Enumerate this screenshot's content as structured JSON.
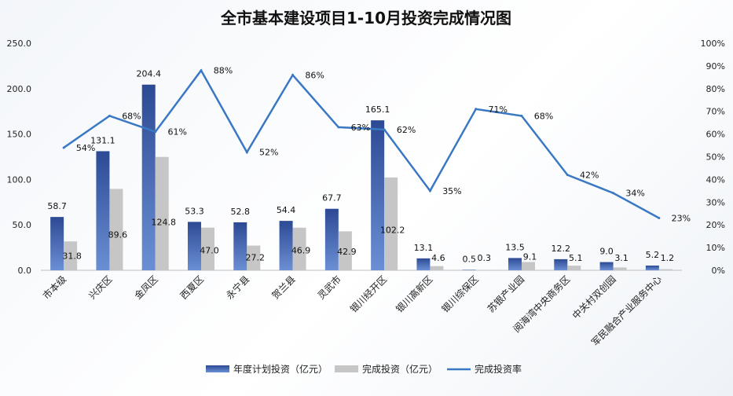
{
  "chart_data": {
    "type": "bar",
    "title": "全市基本建设项目1-10月投资完成情况图",
    "categories": [
      "市本级",
      "兴庆区",
      "金凤区",
      "西夏区",
      "永宁县",
      "贺兰县",
      "灵武市",
      "银川经开区",
      "银川高新区",
      "银川综保区",
      "苏银产业园",
      "阅海湾中央商务区",
      "中关村双创园",
      "军民融合产业服务中心"
    ],
    "series": [
      {
        "name": "年度计划投资（亿元）",
        "type": "bar",
        "axis": "left",
        "color": "#3d5fa8",
        "values": [
          58.7,
          131.1,
          204.4,
          53.3,
          52.8,
          54.4,
          67.7,
          165.1,
          13.1,
          0.5,
          13.5,
          12.2,
          9.0,
          5.2
        ],
        "labels": [
          "58.7",
          "131.1",
          "204.4",
          "53.3",
          "52.8",
          "54.4",
          "67.7",
          "165.1",
          "13.1",
          "0.5",
          "13.5",
          "12.2",
          "9.0",
          "5.2"
        ]
      },
      {
        "name": "完成投资（亿元）",
        "type": "bar",
        "axis": "left",
        "color": "#c6c6c6",
        "values": [
          31.8,
          89.6,
          124.8,
          47.0,
          27.2,
          46.9,
          42.9,
          102.2,
          4.6,
          0.3,
          9.1,
          5.1,
          3.1,
          1.2
        ],
        "labels": [
          "31.8",
          "89.6",
          "124.8",
          "47.0",
          "27.2",
          "46.9",
          "42.9",
          "102.2",
          "4.6",
          "0.3",
          "9.1",
          "5.1",
          "3.1",
          "1.2"
        ]
      },
      {
        "name": "完成投资率",
        "type": "line",
        "axis": "right",
        "color": "#3a78c4",
        "values": [
          54,
          68,
          61,
          88,
          52,
          86,
          63,
          62,
          35,
          71,
          68,
          42,
          34,
          23
        ],
        "labels": [
          "54%",
          "68%",
          "61%",
          "88%",
          "52%",
          "86%",
          "63%",
          "62%",
          "35%",
          "71%",
          "68%",
          "42%",
          "34%",
          "23%"
        ]
      }
    ],
    "y_left": {
      "min": 0,
      "max": 250,
      "ticks": [
        "0.0",
        "50.0",
        "100.0",
        "150.0",
        "200.0",
        "250.0"
      ]
    },
    "y_right": {
      "min": 0,
      "max": 100,
      "ticks": [
        "0%",
        "10%",
        "20%",
        "30%",
        "40%",
        "50%",
        "60%",
        "70%",
        "80%",
        "90%",
        "100%"
      ]
    },
    "grid": false,
    "legend_position": "bottom"
  }
}
